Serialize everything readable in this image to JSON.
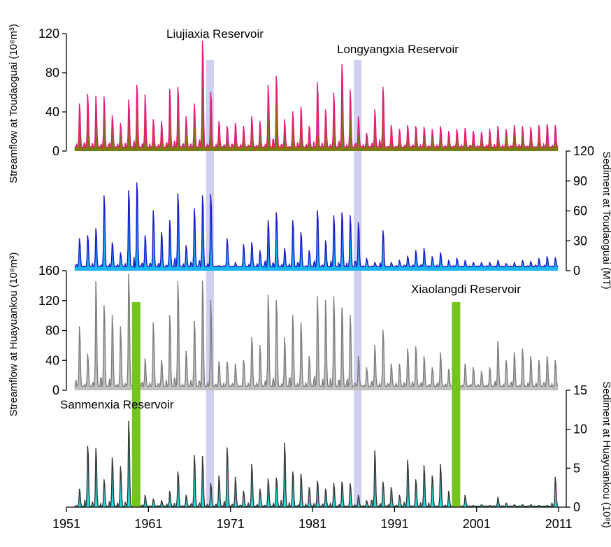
{
  "chart_data": [
    {
      "type": "area",
      "panel": "streamflow-toudaoguai",
      "ylabel": "Streamflow at Toudaoguai (10⁸m³)",
      "ylim": [
        0,
        120
      ],
      "yticks": [
        "0",
        "40",
        "80",
        "120"
      ],
      "axis_side": "left",
      "colors": {
        "line": "#e8187a",
        "fill": "#7b7b0e"
      },
      "peaks": [
        {
          "year": 1952,
          "value": 48
        },
        {
          "year": 1953,
          "value": 58
        },
        {
          "year": 1954,
          "value": 56
        },
        {
          "year": 1955,
          "value": 55
        },
        {
          "year": 1956,
          "value": 36
        },
        {
          "year": 1957,
          "value": 28
        },
        {
          "year": 1958,
          "value": 52
        },
        {
          "year": 1959,
          "value": 67
        },
        {
          "year": 1960,
          "value": 57
        },
        {
          "year": 1961,
          "value": 32
        },
        {
          "year": 1962,
          "value": 30
        },
        {
          "year": 1963,
          "value": 63
        },
        {
          "year": 1964,
          "value": 65
        },
        {
          "year": 1965,
          "value": 35
        },
        {
          "year": 1966,
          "value": 48
        },
        {
          "year": 1967,
          "value": 112
        },
        {
          "year": 1968,
          "value": 60
        },
        {
          "year": 1969,
          "value": 30
        },
        {
          "year": 1970,
          "value": 25
        },
        {
          "year": 1971,
          "value": 28
        },
        {
          "year": 1972,
          "value": 25
        },
        {
          "year": 1973,
          "value": 35
        },
        {
          "year": 1974,
          "value": 30
        },
        {
          "year": 1975,
          "value": 67
        },
        {
          "year": 1976,
          "value": 76
        },
        {
          "year": 1977,
          "value": 32
        },
        {
          "year": 1978,
          "value": 40
        },
        {
          "year": 1979,
          "value": 45
        },
        {
          "year": 1980,
          "value": 25
        },
        {
          "year": 1981,
          "value": 70
        },
        {
          "year": 1982,
          "value": 42
        },
        {
          "year": 1983,
          "value": 59
        },
        {
          "year": 1984,
          "value": 88
        },
        {
          "year": 1985,
          "value": 62
        },
        {
          "year": 1986,
          "value": 35
        },
        {
          "year": 1987,
          "value": 18
        },
        {
          "year": 1988,
          "value": 42
        },
        {
          "year": 1989,
          "value": 65
        },
        {
          "year": 1990,
          "value": 26
        },
        {
          "year": 1991,
          "value": 22
        },
        {
          "year": 1992,
          "value": 26
        },
        {
          "year": 1993,
          "value": 25
        },
        {
          "year": 1994,
          "value": 24
        },
        {
          "year": 1995,
          "value": 22
        },
        {
          "year": 1996,
          "value": 25
        },
        {
          "year": 1997,
          "value": 20
        },
        {
          "year": 1998,
          "value": 22
        },
        {
          "year": 1999,
          "value": 23
        },
        {
          "year": 2000,
          "value": 20
        },
        {
          "year": 2001,
          "value": 19
        },
        {
          "year": 2002,
          "value": 22
        },
        {
          "year": 2003,
          "value": 25
        },
        {
          "year": 2004,
          "value": 22
        },
        {
          "year": 2005,
          "value": 26
        },
        {
          "year": 2006,
          "value": 25
        },
        {
          "year": 2007,
          "value": 24
        },
        {
          "year": 2008,
          "value": 26
        },
        {
          "year": 2009,
          "value": 27
        },
        {
          "year": 2010,
          "value": 26
        }
      ]
    },
    {
      "type": "area",
      "panel": "sediment-toudaoguai",
      "ylabel": "Sediment at Toudaoguai (MT)",
      "ylim": [
        0,
        120
      ],
      "yticks": [
        "0",
        "30",
        "60",
        "90",
        "120"
      ],
      "axis_side": "right",
      "colors": {
        "line": "#1a1acc",
        "fill": "#19b6f0"
      },
      "peaks": [
        {
          "year": 1952,
          "value": 32
        },
        {
          "year": 1953,
          "value": 35
        },
        {
          "year": 1954,
          "value": 42
        },
        {
          "year": 1955,
          "value": 75
        },
        {
          "year": 1956,
          "value": 28
        },
        {
          "year": 1957,
          "value": 18
        },
        {
          "year": 1958,
          "value": 80
        },
        {
          "year": 1959,
          "value": 88
        },
        {
          "year": 1960,
          "value": 35
        },
        {
          "year": 1961,
          "value": 60
        },
        {
          "year": 1962,
          "value": 38
        },
        {
          "year": 1963,
          "value": 50
        },
        {
          "year": 1964,
          "value": 77
        },
        {
          "year": 1965,
          "value": 25
        },
        {
          "year": 1966,
          "value": 62
        },
        {
          "year": 1967,
          "value": 75
        },
        {
          "year": 1968,
          "value": 76
        },
        {
          "year": 1969,
          "value": 5
        },
        {
          "year": 1970,
          "value": 32
        },
        {
          "year": 1971,
          "value": 8
        },
        {
          "year": 1972,
          "value": 26
        },
        {
          "year": 1973,
          "value": 28
        },
        {
          "year": 1974,
          "value": 20
        },
        {
          "year": 1975,
          "value": 50
        },
        {
          "year": 1976,
          "value": 58
        },
        {
          "year": 1977,
          "value": 22
        },
        {
          "year": 1978,
          "value": 50
        },
        {
          "year": 1979,
          "value": 38
        },
        {
          "year": 1980,
          "value": 20
        },
        {
          "year": 1981,
          "value": 60
        },
        {
          "year": 1982,
          "value": 30
        },
        {
          "year": 1983,
          "value": 55
        },
        {
          "year": 1984,
          "value": 58
        },
        {
          "year": 1985,
          "value": 55
        },
        {
          "year": 1986,
          "value": 48
        },
        {
          "year": 1987,
          "value": 12
        },
        {
          "year": 1988,
          "value": 8
        },
        {
          "year": 1989,
          "value": 40
        },
        {
          "year": 1990,
          "value": 8
        },
        {
          "year": 1991,
          "value": 10
        },
        {
          "year": 1992,
          "value": 14
        },
        {
          "year": 1993,
          "value": 20
        },
        {
          "year": 1994,
          "value": 22
        },
        {
          "year": 1995,
          "value": 14
        },
        {
          "year": 1996,
          "value": 18
        },
        {
          "year": 1997,
          "value": 10
        },
        {
          "year": 1998,
          "value": 12
        },
        {
          "year": 1999,
          "value": 10
        },
        {
          "year": 2000,
          "value": 8
        },
        {
          "year": 2001,
          "value": 8
        },
        {
          "year": 2002,
          "value": 8
        },
        {
          "year": 2003,
          "value": 10
        },
        {
          "year": 2004,
          "value": 7
        },
        {
          "year": 2005,
          "value": 8
        },
        {
          "year": 2006,
          "value": 10
        },
        {
          "year": 2007,
          "value": 9
        },
        {
          "year": 2008,
          "value": 12
        },
        {
          "year": 2009,
          "value": 14
        },
        {
          "year": 2010,
          "value": 13
        }
      ]
    },
    {
      "type": "area",
      "panel": "streamflow-huayuankou",
      "ylabel": "Streamflow at Huayuankou (10⁸m³)",
      "ylim": [
        0,
        160
      ],
      "yticks": [
        "0",
        "40",
        "80",
        "120",
        "160"
      ],
      "axis_side": "left",
      "colors": {
        "line": "#7f7f7f",
        "fill": "#c0c0c0"
      },
      "peaks": [
        {
          "year": 1952,
          "value": 85
        },
        {
          "year": 1953,
          "value": 48
        },
        {
          "year": 1954,
          "value": 145
        },
        {
          "year": 1955,
          "value": 113
        },
        {
          "year": 1956,
          "value": 100
        },
        {
          "year": 1957,
          "value": 85
        },
        {
          "year": 1958,
          "value": 155
        },
        {
          "year": 1959,
          "value": 95
        },
        {
          "year": 1960,
          "value": 42
        },
        {
          "year": 1961,
          "value": 90
        },
        {
          "year": 1962,
          "value": 40
        },
        {
          "year": 1963,
          "value": 100
        },
        {
          "year": 1964,
          "value": 145
        },
        {
          "year": 1965,
          "value": 52
        },
        {
          "year": 1966,
          "value": 92
        },
        {
          "year": 1967,
          "value": 146
        },
        {
          "year": 1968,
          "value": 120
        },
        {
          "year": 1969,
          "value": 38
        },
        {
          "year": 1970,
          "value": 38
        },
        {
          "year": 1971,
          "value": 35
        },
        {
          "year": 1972,
          "value": 40
        },
        {
          "year": 1973,
          "value": 70
        },
        {
          "year": 1974,
          "value": 60
        },
        {
          "year": 1975,
          "value": 127
        },
        {
          "year": 1976,
          "value": 120
        },
        {
          "year": 1977,
          "value": 70
        },
        {
          "year": 1978,
          "value": 100
        },
        {
          "year": 1979,
          "value": 90
        },
        {
          "year": 1980,
          "value": 45
        },
        {
          "year": 1981,
          "value": 125
        },
        {
          "year": 1982,
          "value": 120
        },
        {
          "year": 1983,
          "value": 125
        },
        {
          "year": 1984,
          "value": 110
        },
        {
          "year": 1985,
          "value": 100
        },
        {
          "year": 1986,
          "value": 45
        },
        {
          "year": 1987,
          "value": 30
        },
        {
          "year": 1988,
          "value": 60
        },
        {
          "year": 1989,
          "value": 80
        },
        {
          "year": 1990,
          "value": 35
        },
        {
          "year": 1991,
          "value": 35
        },
        {
          "year": 1992,
          "value": 55
        },
        {
          "year": 1993,
          "value": 58
        },
        {
          "year": 1994,
          "value": 45
        },
        {
          "year": 1995,
          "value": 30
        },
        {
          "year": 1996,
          "value": 50
        },
        {
          "year": 1997,
          "value": 28
        },
        {
          "year": 1998,
          "value": 60
        },
        {
          "year": 1999,
          "value": 35
        },
        {
          "year": 2000,
          "value": 30
        },
        {
          "year": 2001,
          "value": 25
        },
        {
          "year": 2002,
          "value": 30
        },
        {
          "year": 2003,
          "value": 65
        },
        {
          "year": 2004,
          "value": 40
        },
        {
          "year": 2005,
          "value": 50
        },
        {
          "year": 2006,
          "value": 55
        },
        {
          "year": 2007,
          "value": 45
        },
        {
          "year": 2008,
          "value": 40
        },
        {
          "year": 2009,
          "value": 45
        },
        {
          "year": 2010,
          "value": 40
        }
      ]
    },
    {
      "type": "area",
      "panel": "sediment-huayuankou",
      "ylabel": "Sediment at Huayuankou (10⁸t)",
      "ylim": [
        0,
        15
      ],
      "yticks": [
        "0",
        "5",
        "10",
        "15"
      ],
      "axis_side": "right",
      "colors": {
        "line": "#3a3a3a",
        "fill": "#22dddd"
      },
      "peaks": [
        {
          "year": 1952,
          "value": 2.3
        },
        {
          "year": 1953,
          "value": 7.8
        },
        {
          "year": 1954,
          "value": 7.5
        },
        {
          "year": 1955,
          "value": 3.5
        },
        {
          "year": 1956,
          "value": 6.3
        },
        {
          "year": 1957,
          "value": 5.2
        },
        {
          "year": 1958,
          "value": 11.0
        },
        {
          "year": 1959,
          "value": 12.5
        },
        {
          "year": 1960,
          "value": 1.5
        },
        {
          "year": 1961,
          "value": 1.0
        },
        {
          "year": 1962,
          "value": 0.8
        },
        {
          "year": 1963,
          "value": 2.0
        },
        {
          "year": 1964,
          "value": 4.5
        },
        {
          "year": 1965,
          "value": 1.5
        },
        {
          "year": 1966,
          "value": 6.6
        },
        {
          "year": 1967,
          "value": 6.5
        },
        {
          "year": 1968,
          "value": 3.0
        },
        {
          "year": 1969,
          "value": 4.0
        },
        {
          "year": 1970,
          "value": 7.6
        },
        {
          "year": 1971,
          "value": 3.8
        },
        {
          "year": 1972,
          "value": 2.0
        },
        {
          "year": 1973,
          "value": 5.5
        },
        {
          "year": 1974,
          "value": 2.3
        },
        {
          "year": 1975,
          "value": 3.6
        },
        {
          "year": 1976,
          "value": 3.7
        },
        {
          "year": 1977,
          "value": 8.2
        },
        {
          "year": 1978,
          "value": 4.5
        },
        {
          "year": 1979,
          "value": 4.2
        },
        {
          "year": 1980,
          "value": 2.5
        },
        {
          "year": 1981,
          "value": 3.3
        },
        {
          "year": 1982,
          "value": 2.3
        },
        {
          "year": 1983,
          "value": 3.0
        },
        {
          "year": 1984,
          "value": 3.2
        },
        {
          "year": 1985,
          "value": 3.0
        },
        {
          "year": 1986,
          "value": 1.5
        },
        {
          "year": 1987,
          "value": 0.8
        },
        {
          "year": 1988,
          "value": 7.2
        },
        {
          "year": 1989,
          "value": 3.2
        },
        {
          "year": 1990,
          "value": 2.5
        },
        {
          "year": 1991,
          "value": 1.5
        },
        {
          "year": 1992,
          "value": 6.0
        },
        {
          "year": 1993,
          "value": 3.5
        },
        {
          "year": 1994,
          "value": 5.3
        },
        {
          "year": 1995,
          "value": 4.0
        },
        {
          "year": 1996,
          "value": 5.5
        },
        {
          "year": 1997,
          "value": 2.0
        },
        {
          "year": 1998,
          "value": 4.5
        },
        {
          "year": 1999,
          "value": 1.5
        },
        {
          "year": 2000,
          "value": 0.2
        },
        {
          "year": 2001,
          "value": 0.3
        },
        {
          "year": 2002,
          "value": 0.2
        },
        {
          "year": 2003,
          "value": 1.2
        },
        {
          "year": 2004,
          "value": 0.5
        },
        {
          "year": 2005,
          "value": 0.3
        },
        {
          "year": 2006,
          "value": 0.3
        },
        {
          "year": 2007,
          "value": 0.3
        },
        {
          "year": 2008,
          "value": 0.2
        },
        {
          "year": 2009,
          "value": 0.2
        },
        {
          "year": 2010,
          "value": 3.8
        }
      ]
    }
  ],
  "x_axis": {
    "range": [
      1951,
      2011.5
    ],
    "ticks": [
      "1951",
      "1961",
      "1971",
      "1981",
      "1991",
      "2001",
      "2011"
    ]
  },
  "reservoirs": [
    {
      "name": "Liujiaxia Reservoir",
      "year": 1968.5,
      "color": "#c8c8f0",
      "panels": "top"
    },
    {
      "name": "Longyangxia Reservoir",
      "year": 1986.5,
      "color": "#c8c8f0",
      "panels": "top"
    },
    {
      "name": "Sanmenxia Reservoir",
      "year": 1959.5,
      "color": "#76c21e",
      "panels": "bottom"
    },
    {
      "name": "Xiaolangdi Reservoir",
      "year": 1998.5,
      "color": "#76c21e",
      "panels": "bottom"
    }
  ]
}
